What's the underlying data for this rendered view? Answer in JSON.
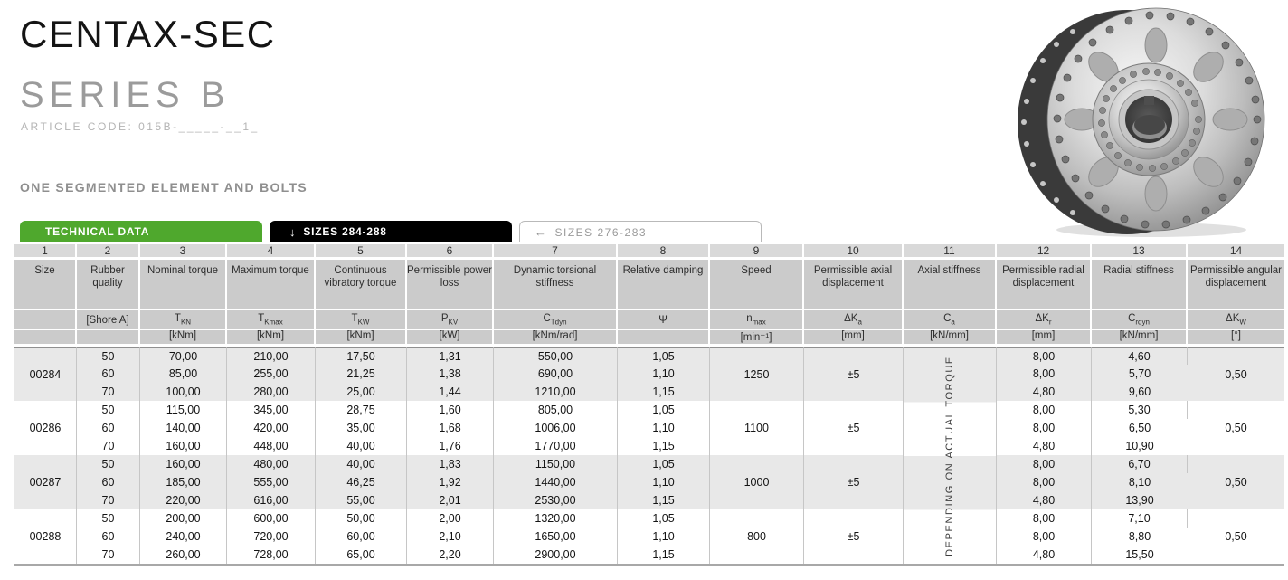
{
  "page": {
    "title": "CENTAX-SEC",
    "series": "SERIES B",
    "article_code": "ARTICLE CODE: 015B-_____-__1_",
    "section_label": "ONE SEGMENTED ELEMENT AND BOLTS"
  },
  "colors": {
    "tab_green": "#4FA82D",
    "tab_black": "#000000",
    "header_gray": "#cbcbcb",
    "row_stripe_gray": "#e8e8e8"
  },
  "tabs": [
    {
      "arrow": "",
      "label": "TECHNICAL DATA"
    },
    {
      "arrow": "↓",
      "label": "SIZES 284-288"
    },
    {
      "arrow": "←",
      "label": "SIZES 276-283"
    }
  ],
  "table": {
    "column_numbers": [
      "1",
      "2",
      "3",
      "4",
      "5",
      "6",
      "7",
      "8",
      "9",
      "10",
      "11",
      "12",
      "13",
      "14"
    ],
    "columns": [
      {
        "name": "Size",
        "sym": "",
        "sub": "",
        "unit": ""
      },
      {
        "name": "Rubber quality",
        "sym": "[Shore A]",
        "sub": "",
        "unit": ""
      },
      {
        "name": "Nominal torque",
        "sym": "T",
        "sub": "KN",
        "unit": "[kNm]"
      },
      {
        "name": "Maximum torque",
        "sym": "T",
        "sub": "Kmax",
        "unit": "[kNm]"
      },
      {
        "name": "Continuous vibratory torque",
        "sym": "T",
        "sub": "KW",
        "unit": "[kNm]"
      },
      {
        "name": "Permissible power loss",
        "sym": "P",
        "sub": "KV",
        "unit": "[kW]"
      },
      {
        "name": "Dynamic torsional stiffness",
        "sym": "C",
        "sub": "Tdyn",
        "unit": "[kNm/rad]"
      },
      {
        "name": "Relative damping",
        "sym": "Ψ",
        "sub": "",
        "unit": ""
      },
      {
        "name": "Speed",
        "sym": "n",
        "sub": "max",
        "unit": "[min⁻¹]"
      },
      {
        "name": "Permissible axial displacement",
        "sym": "ΔK",
        "sub": "a",
        "unit": "[mm]"
      },
      {
        "name": "Axial stiffness",
        "sym": "C",
        "sub": "a",
        "unit": "[kN/mm]"
      },
      {
        "name": "Permissible radial displacement",
        "sym": "ΔK",
        "sub": "r",
        "unit": "[mm]"
      },
      {
        "name": "Radial stiffness",
        "sym": "C",
        "sub": "rdyn",
        "unit": "[kN/mm]"
      },
      {
        "name": "Permissible angular displacement",
        "sym": "ΔK",
        "sub": "W",
        "unit": "[°]"
      }
    ],
    "axial_note": "DEPENDING ON ACTUAL TORQUE",
    "groups": [
      {
        "size": "00284",
        "speed": "1250",
        "axial_displacement": "±5",
        "angular_displacement": "0,50",
        "rows": [
          {
            "shore": "50",
            "t_kn": "70,00",
            "t_kmax": "210,00",
            "t_kw": "17,50",
            "p_kv": "1,31",
            "c_tdyn": "550,00",
            "damping": "1,05",
            "dk_r": "8,00",
            "c_rdyn": "4,60"
          },
          {
            "shore": "60",
            "t_kn": "85,00",
            "t_kmax": "255,00",
            "t_kw": "21,25",
            "p_kv": "1,38",
            "c_tdyn": "690,00",
            "damping": "1,10",
            "dk_r": "8,00",
            "c_rdyn": "5,70"
          },
          {
            "shore": "70",
            "t_kn": "100,00",
            "t_kmax": "280,00",
            "t_kw": "25,00",
            "p_kv": "1,44",
            "c_tdyn": "1210,00",
            "damping": "1,15",
            "dk_r": "4,80",
            "c_rdyn": "9,60"
          }
        ]
      },
      {
        "size": "00286",
        "speed": "1100",
        "axial_displacement": "±5",
        "angular_displacement": "0,50",
        "rows": [
          {
            "shore": "50",
            "t_kn": "115,00",
            "t_kmax": "345,00",
            "t_kw": "28,75",
            "p_kv": "1,60",
            "c_tdyn": "805,00",
            "damping": "1,05",
            "dk_r": "8,00",
            "c_rdyn": "5,30"
          },
          {
            "shore": "60",
            "t_kn": "140,00",
            "t_kmax": "420,00",
            "t_kw": "35,00",
            "p_kv": "1,68",
            "c_tdyn": "1006,00",
            "damping": "1,10",
            "dk_r": "8,00",
            "c_rdyn": "6,50"
          },
          {
            "shore": "70",
            "t_kn": "160,00",
            "t_kmax": "448,00",
            "t_kw": "40,00",
            "p_kv": "1,76",
            "c_tdyn": "1770,00",
            "damping": "1,15",
            "dk_r": "4,80",
            "c_rdyn": "10,90"
          }
        ]
      },
      {
        "size": "00287",
        "speed": "1000",
        "axial_displacement": "±5",
        "angular_displacement": "0,50",
        "rows": [
          {
            "shore": "50",
            "t_kn": "160,00",
            "t_kmax": "480,00",
            "t_kw": "40,00",
            "p_kv": "1,83",
            "c_tdyn": "1150,00",
            "damping": "1,05",
            "dk_r": "8,00",
            "c_rdyn": "6,70"
          },
          {
            "shore": "60",
            "t_kn": "185,00",
            "t_kmax": "555,00",
            "t_kw": "46,25",
            "p_kv": "1,92",
            "c_tdyn": "1440,00",
            "damping": "1,10",
            "dk_r": "8,00",
            "c_rdyn": "8,10"
          },
          {
            "shore": "70",
            "t_kn": "220,00",
            "t_kmax": "616,00",
            "t_kw": "55,00",
            "p_kv": "2,01",
            "c_tdyn": "2530,00",
            "damping": "1,15",
            "dk_r": "4,80",
            "c_rdyn": "13,90"
          }
        ]
      },
      {
        "size": "00288",
        "speed": "800",
        "axial_displacement": "±5",
        "angular_displacement": "0,50",
        "rows": [
          {
            "shore": "50",
            "t_kn": "200,00",
            "t_kmax": "600,00",
            "t_kw": "50,00",
            "p_kv": "2,00",
            "c_tdyn": "1320,00",
            "damping": "1,05",
            "dk_r": "8,00",
            "c_rdyn": "7,10"
          },
          {
            "shore": "60",
            "t_kn": "240,00",
            "t_kmax": "720,00",
            "t_kw": "60,00",
            "p_kv": "2,10",
            "c_tdyn": "1650,00",
            "damping": "1,10",
            "dk_r": "8,00",
            "c_rdyn": "8,80"
          },
          {
            "shore": "70",
            "t_kn": "260,00",
            "t_kmax": "728,00",
            "t_kw": "65,00",
            "p_kv": "2,20",
            "c_tdyn": "2900,00",
            "damping": "1,15",
            "dk_r": "4,80",
            "c_rdyn": "15,50"
          }
        ]
      }
    ]
  }
}
